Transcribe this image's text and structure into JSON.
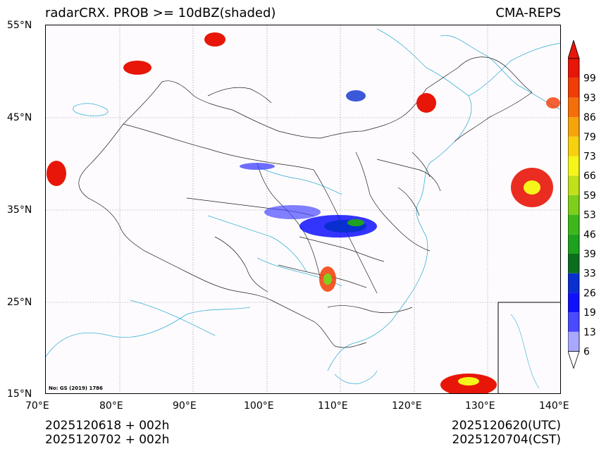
{
  "title": {
    "left": "radarCRX. PROB >= 10dBZ(shaded)",
    "right": "CMA-REPS"
  },
  "axes": {
    "lat_labels": [
      "55°N",
      "45°N",
      "35°N",
      "25°N",
      "15°N"
    ],
    "lon_labels": [
      "70°E",
      "80°E",
      "90°E",
      "100°E",
      "110°E",
      "120°E",
      "130°E",
      "140°E"
    ],
    "lat_range": [
      15,
      55
    ],
    "lon_range": [
      70,
      140
    ]
  },
  "note": "No: GS (2019) 1786",
  "colorbar": {
    "labels": [
      "6",
      "13",
      "19",
      "26",
      "33",
      "39",
      "46",
      "53",
      "59",
      "66",
      "73",
      "79",
      "86",
      "93",
      "99"
    ],
    "colors": [
      "#a8a8ff",
      "#4a4aff",
      "#1010ff",
      "#0a2fd0",
      "#0b6e1e",
      "#1ea21e",
      "#3cb81c",
      "#7ecf1c",
      "#c2e01a",
      "#f5f51a",
      "#f7d010",
      "#f7a30a",
      "#f56e08",
      "#f03c05",
      "#e81608"
    ],
    "arrow_high": "#e81608",
    "arrow_low": "#ffffff"
  },
  "footer": {
    "left_line1": "2025120618  +  002h",
    "left_line2": "2025120702  +  002h",
    "right_line1": "2025120620(UTC)",
    "right_line2": "2025120704(CST)"
  }
}
